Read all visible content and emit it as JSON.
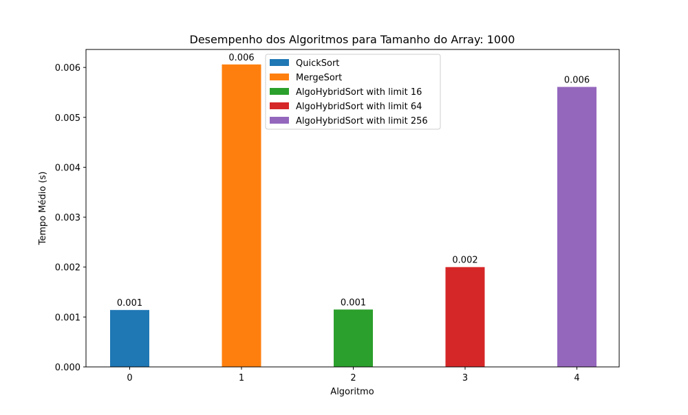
{
  "chart_data": {
    "type": "bar",
    "title": "Desempenho dos Algoritmos para Tamanho do Array: 1000",
    "xlabel": "Algoritmo",
    "ylabel": "Tempo Médio (s)",
    "categories": [
      "0",
      "1",
      "2",
      "3",
      "4"
    ],
    "ylim": [
      0,
      0.00636
    ],
    "yticks": [
      "0.000",
      "0.001",
      "0.002",
      "0.003",
      "0.004",
      "0.005",
      "0.006"
    ],
    "series": [
      {
        "name": "QuickSort",
        "x": "0",
        "value": 0.00114,
        "label": "0.001",
        "color": "#1f77b4"
      },
      {
        "name": "MergeSort",
        "x": "1",
        "value": 0.00606,
        "label": "0.006",
        "color": "#ff7f0e"
      },
      {
        "name": "AlgoHybridSort with limit 16",
        "x": "2",
        "value": 0.00115,
        "label": "0.001",
        "color": "#2ca02c"
      },
      {
        "name": "AlgoHybridSort with limit 64",
        "x": "3",
        "value": 0.002,
        "label": "0.002",
        "color": "#d62728"
      },
      {
        "name": "AlgoHybridSort with limit 256",
        "x": "4",
        "value": 0.00561,
        "label": "0.006",
        "color": "#9467bd"
      }
    ],
    "legend": "top-center",
    "grid": false
  }
}
